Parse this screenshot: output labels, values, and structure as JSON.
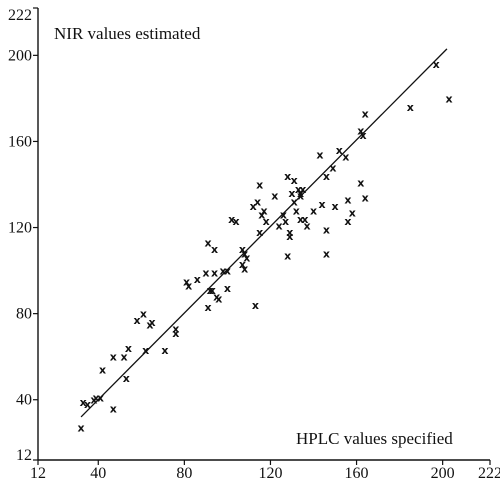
{
  "chart_data": {
    "type": "scatter",
    "annotations": {
      "y_title": "NIR values estimated",
      "x_title": "HPLC values specified"
    },
    "xlim": [
      12,
      222
    ],
    "ylim": [
      12,
      222
    ],
    "x_ticks": [
      12,
      40,
      80,
      120,
      160,
      200,
      222
    ],
    "y_ticks": [
      12,
      40,
      80,
      120,
      160,
      200,
      222
    ],
    "marker": "x",
    "grid": false,
    "legend": "none",
    "fit_line": {
      "x": [
        32,
        202
      ],
      "y": [
        32,
        203
      ]
    },
    "series": [
      {
        "points": [
          [
            32,
            27
          ],
          [
            33,
            39
          ],
          [
            35,
            38
          ],
          [
            38,
            40
          ],
          [
            39,
            41
          ],
          [
            41,
            41
          ],
          [
            42,
            54
          ],
          [
            47,
            36
          ],
          [
            47,
            60
          ],
          [
            52,
            60
          ],
          [
            53,
            50
          ],
          [
            54,
            64
          ],
          [
            58,
            77
          ],
          [
            61,
            80
          ],
          [
            62,
            63
          ],
          [
            64,
            75
          ],
          [
            65,
            76
          ],
          [
            71,
            63
          ],
          [
            76,
            71
          ],
          [
            76,
            73
          ],
          [
            81,
            95
          ],
          [
            82,
            93
          ],
          [
            86,
            96
          ],
          [
            90,
            99
          ],
          [
            91,
            113
          ],
          [
            91,
            83
          ],
          [
            92,
            91
          ],
          [
            93,
            91
          ],
          [
            94,
            99
          ],
          [
            94,
            110
          ],
          [
            95,
            88
          ],
          [
            96,
            87
          ],
          [
            98,
            100
          ],
          [
            100,
            92
          ],
          [
            100,
            100
          ],
          [
            102,
            124
          ],
          [
            104,
            123
          ],
          [
            107,
            110
          ],
          [
            107,
            103
          ],
          [
            108,
            101
          ],
          [
            108,
            108
          ],
          [
            109,
            106
          ],
          [
            112,
            130
          ],
          [
            113,
            84
          ],
          [
            114,
            132
          ],
          [
            115,
            140
          ],
          [
            115,
            118
          ],
          [
            116,
            126
          ],
          [
            117,
            128
          ],
          [
            118,
            123
          ],
          [
            122,
            135
          ],
          [
            124,
            121
          ],
          [
            126,
            126
          ],
          [
            127,
            123
          ],
          [
            128,
            107
          ],
          [
            128,
            144
          ],
          [
            129,
            116
          ],
          [
            129,
            118
          ],
          [
            130,
            136
          ],
          [
            131,
            142
          ],
          [
            131,
            132
          ],
          [
            132,
            128
          ],
          [
            133,
            138
          ],
          [
            134,
            136
          ],
          [
            134,
            135
          ],
          [
            134,
            124
          ],
          [
            135,
            138
          ],
          [
            136,
            124
          ],
          [
            137,
            121
          ],
          [
            140,
            128
          ],
          [
            143,
            154
          ],
          [
            144,
            131
          ],
          [
            146,
            119
          ],
          [
            146,
            108
          ],
          [
            146,
            144
          ],
          [
            149,
            148
          ],
          [
            150,
            130
          ],
          [
            152,
            156
          ],
          [
            155,
            153
          ],
          [
            156,
            133
          ],
          [
            156,
            123
          ],
          [
            158,
            127
          ],
          [
            162,
            141
          ],
          [
            162,
            165
          ],
          [
            163,
            163
          ],
          [
            164,
            173
          ],
          [
            164,
            134
          ],
          [
            185,
            176
          ],
          [
            197,
            196
          ],
          [
            203,
            180
          ]
        ]
      }
    ]
  }
}
